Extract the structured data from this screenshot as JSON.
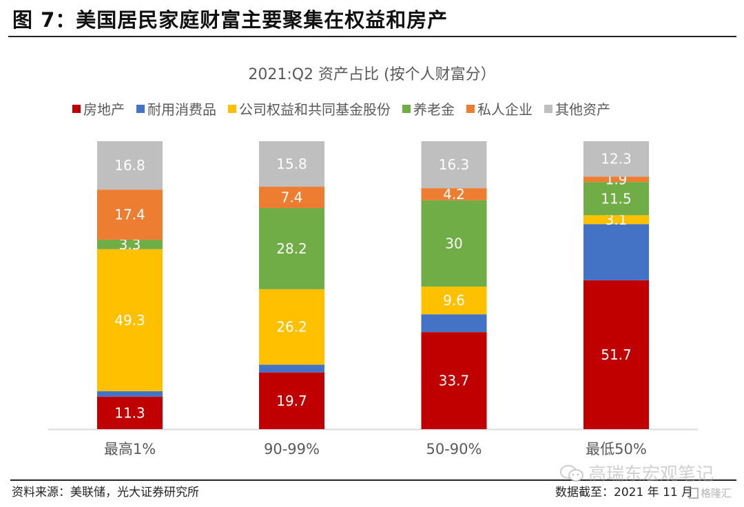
{
  "figure": {
    "title": "图 7：美国居民家庭财富主要聚集在权益和房产",
    "source": "资料来源：美联储，光大证券研究所",
    "date": "数据截至：2021 年 11 月",
    "watermarks": [
      "高瑞东宏观笔记",
      "格隆汇"
    ]
  },
  "chart_data": {
    "type": "bar",
    "stacked": true,
    "title": "2021:Q2 资产占比 (按个人财富分）",
    "xlabel": "",
    "ylabel": "",
    "ylim": [
      0,
      100
    ],
    "grid": false,
    "legend_position": "top",
    "categories": [
      "最高1%",
      "90-99%",
      "50-90%",
      "最低50%"
    ],
    "series": [
      {
        "name": "房地产",
        "color": "#C00000",
        "values": [
          11.3,
          19.7,
          33.7,
          51.7
        ],
        "labels": [
          "11.3",
          "19.7",
          "33.7",
          "51.7"
        ]
      },
      {
        "name": "耐用消费品",
        "color": "#4472C4",
        "values": [
          1.9,
          2.7,
          6.2,
          19.5
        ],
        "labels": [
          "",
          "",
          "",
          ""
        ]
      },
      {
        "name": "公司权益和共同基金股份",
        "color": "#FFC000",
        "values": [
          49.3,
          26.2,
          9.6,
          3.1
        ],
        "labels": [
          "49.3",
          "26.2",
          "9.6",
          "3.1"
        ]
      },
      {
        "name": "养老金",
        "color": "#70AD47",
        "values": [
          3.3,
          28.2,
          30,
          11.5
        ],
        "labels": [
          "3.3",
          "28.2",
          "30",
          "11.5"
        ]
      },
      {
        "name": "私人企业",
        "color": "#ED7D31",
        "values": [
          17.4,
          7.4,
          4.2,
          1.9
        ],
        "labels": [
          "17.4",
          "7.4",
          "4.2",
          "1.9"
        ]
      },
      {
        "name": "其他资产",
        "color": "#BFBFBF",
        "values": [
          16.8,
          15.8,
          16.3,
          12.3
        ],
        "labels": [
          "16.8",
          "15.8",
          "16.3",
          "12.3"
        ]
      }
    ]
  }
}
